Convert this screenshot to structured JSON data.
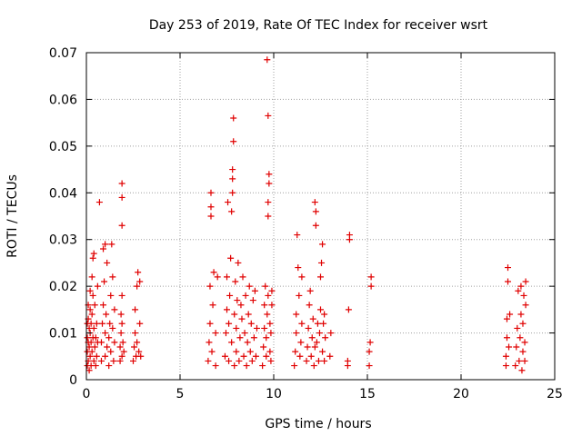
{
  "chart_data": {
    "type": "scatter",
    "title": "Day 253 of 2019, Rate Of TEC Index for receiver wsrt",
    "xlabel": "GPS time / hours",
    "ylabel": "ROTI / TECUs",
    "xlim": [
      0,
      25
    ],
    "ylim": [
      0,
      0.07
    ],
    "x_ticks": [
      0,
      5,
      10,
      15,
      20,
      25
    ],
    "x_tick_labels": [
      "0",
      "5",
      "10",
      "15",
      "20",
      "25"
    ],
    "y_ticks": [
      0,
      0.01,
      0.02,
      0.03,
      0.04,
      0.05,
      0.06,
      0.07
    ],
    "y_tick_labels": [
      "0",
      "0.01",
      "0.02",
      "0.03",
      "0.04",
      "0.05",
      "0.06",
      "0.07"
    ],
    "grid": true,
    "marker": "plus",
    "color": "#e00000",
    "series": [
      {
        "name": "",
        "points": [
          [
            0.05,
            0.003
          ],
          [
            0.05,
            0.006
          ],
          [
            0.05,
            0.009
          ],
          [
            0.05,
            0.012
          ],
          [
            0.1,
            0.004
          ],
          [
            0.1,
            0.008
          ],
          [
            0.1,
            0.013
          ],
          [
            0.1,
            0.016
          ],
          [
            0.15,
            0.002
          ],
          [
            0.15,
            0.007
          ],
          [
            0.15,
            0.011
          ],
          [
            0.2,
            0.005
          ],
          [
            0.2,
            0.01
          ],
          [
            0.2,
            0.015
          ],
          [
            0.2,
            0.019
          ],
          [
            0.25,
            0.003
          ],
          [
            0.25,
            0.008
          ],
          [
            0.25,
            0.012
          ],
          [
            0.3,
            0.006
          ],
          [
            0.3,
            0.014
          ],
          [
            0.3,
            0.022
          ],
          [
            0.35,
            0.009
          ],
          [
            0.35,
            0.018
          ],
          [
            0.35,
            0.026
          ],
          [
            0.4,
            0.004
          ],
          [
            0.4,
            0.011
          ],
          [
            0.4,
            0.027
          ],
          [
            0.45,
            0.007
          ],
          [
            0.45,
            0.016
          ],
          [
            0.5,
            0.003
          ],
          [
            0.5,
            0.009
          ],
          [
            0.55,
            0.005
          ],
          [
            0.55,
            0.012
          ],
          [
            0.6,
            0.008
          ],
          [
            0.6,
            0.02
          ],
          [
            0.8,
            0.004
          ],
          [
            0.8,
            0.008
          ],
          [
            0.85,
            0.012
          ],
          [
            0.9,
            0.016
          ],
          [
            0.9,
            0.028
          ],
          [
            0.95,
            0.021
          ],
          [
            1.0,
            0.005
          ],
          [
            1.0,
            0.01
          ],
          [
            1.0,
            0.029
          ],
          [
            1.05,
            0.014
          ],
          [
            1.1,
            0.025
          ],
          [
            1.1,
            0.007
          ],
          [
            0.7,
            0.038
          ],
          [
            1.2,
            0.003
          ],
          [
            1.2,
            0.009
          ],
          [
            1.25,
            0.012
          ],
          [
            1.3,
            0.006
          ],
          [
            1.3,
            0.018
          ],
          [
            1.35,
            0.029
          ],
          [
            1.4,
            0.011
          ],
          [
            1.4,
            0.022
          ],
          [
            1.45,
            0.004
          ],
          [
            1.5,
            0.008
          ],
          [
            1.5,
            0.015
          ],
          [
            1.8,
            0.004
          ],
          [
            1.8,
            0.007
          ],
          [
            1.85,
            0.01
          ],
          [
            1.85,
            0.014
          ],
          [
            1.9,
            0.005
          ],
          [
            1.9,
            0.012
          ],
          [
            1.9,
            0.018
          ],
          [
            1.9,
            0.033
          ],
          [
            1.9,
            0.039
          ],
          [
            1.9,
            0.042
          ],
          [
            1.95,
            0.008
          ],
          [
            2.0,
            0.006
          ],
          [
            2.5,
            0.004
          ],
          [
            2.55,
            0.007
          ],
          [
            2.6,
            0.01
          ],
          [
            2.6,
            0.015
          ],
          [
            2.65,
            0.005
          ],
          [
            2.7,
            0.008
          ],
          [
            2.7,
            0.02
          ],
          [
            2.75,
            0.023
          ],
          [
            2.8,
            0.006
          ],
          [
            2.85,
            0.012
          ],
          [
            2.85,
            0.021
          ],
          [
            2.9,
            0.005
          ],
          [
            6.5,
            0.004
          ],
          [
            6.55,
            0.008
          ],
          [
            6.6,
            0.012
          ],
          [
            6.6,
            0.02
          ],
          [
            6.65,
            0.035
          ],
          [
            6.65,
            0.037
          ],
          [
            6.65,
            0.04
          ],
          [
            6.7,
            0.006
          ],
          [
            6.75,
            0.016
          ],
          [
            6.8,
            0.023
          ],
          [
            6.9,
            0.003
          ],
          [
            6.9,
            0.01
          ],
          [
            7.0,
            0.022
          ],
          [
            7.4,
            0.005
          ],
          [
            7.45,
            0.01
          ],
          [
            7.5,
            0.015
          ],
          [
            7.5,
            0.022
          ],
          [
            7.55,
            0.038
          ],
          [
            7.6,
            0.004
          ],
          [
            7.6,
            0.012
          ],
          [
            7.65,
            0.018
          ],
          [
            7.7,
            0.026
          ],
          [
            7.75,
            0.008
          ],
          [
            7.75,
            0.036
          ],
          [
            7.8,
            0.04
          ],
          [
            7.8,
            0.043
          ],
          [
            7.8,
            0.045
          ],
          [
            7.85,
            0.051
          ],
          [
            7.85,
            0.056
          ],
          [
            7.9,
            0.003
          ],
          [
            7.9,
            0.014
          ],
          [
            7.95,
            0.021
          ],
          [
            8.0,
            0.006
          ],
          [
            8.0,
            0.011
          ],
          [
            8.05,
            0.017
          ],
          [
            8.1,
            0.025
          ],
          [
            8.15,
            0.004
          ],
          [
            8.2,
            0.009
          ],
          [
            8.25,
            0.016
          ],
          [
            8.3,
            0.013
          ],
          [
            8.35,
            0.022
          ],
          [
            8.4,
            0.005
          ],
          [
            8.45,
            0.01
          ],
          [
            8.5,
            0.018
          ],
          [
            8.55,
            0.003
          ],
          [
            8.6,
            0.008
          ],
          [
            8.65,
            0.014
          ],
          [
            8.7,
            0.02
          ],
          [
            8.75,
            0.006
          ],
          [
            8.8,
            0.012
          ],
          [
            8.85,
            0.004
          ],
          [
            8.9,
            0.017
          ],
          [
            8.95,
            0.009
          ],
          [
            9.0,
            0.019
          ],
          [
            9.05,
            0.005
          ],
          [
            9.1,
            0.011
          ],
          [
            9.4,
            0.003
          ],
          [
            9.45,
            0.007
          ],
          [
            9.5,
            0.011
          ],
          [
            9.5,
            0.016
          ],
          [
            9.55,
            0.02
          ],
          [
            9.6,
            0.005
          ],
          [
            9.6,
            0.009
          ],
          [
            9.65,
            0.014
          ],
          [
            9.7,
            0.018
          ],
          [
            9.7,
            0.035
          ],
          [
            9.7,
            0.038
          ],
          [
            9.75,
            0.042
          ],
          [
            9.75,
            0.044
          ],
          [
            9.7,
            0.0565
          ],
          [
            9.65,
            0.0685
          ],
          [
            9.8,
            0.006
          ],
          [
            9.8,
            0.012
          ],
          [
            9.85,
            0.004
          ],
          [
            9.85,
            0.01
          ],
          [
            9.9,
            0.016
          ],
          [
            9.9,
            0.019
          ],
          [
            11.1,
            0.003
          ],
          [
            11.15,
            0.006
          ],
          [
            11.2,
            0.01
          ],
          [
            11.2,
            0.014
          ],
          [
            11.25,
            0.031
          ],
          [
            11.3,
            0.024
          ],
          [
            11.35,
            0.018
          ],
          [
            11.4,
            0.005
          ],
          [
            11.45,
            0.008
          ],
          [
            11.5,
            0.012
          ],
          [
            11.5,
            0.022
          ],
          [
            11.75,
            0.004
          ],
          [
            11.8,
            0.007
          ],
          [
            11.85,
            0.011
          ],
          [
            11.9,
            0.016
          ],
          [
            11.95,
            0.019
          ],
          [
            12.0,
            0.005
          ],
          [
            12.05,
            0.009
          ],
          [
            12.1,
            0.013
          ],
          [
            12.15,
            0.003
          ],
          [
            12.2,
            0.007
          ],
          [
            12.2,
            0.038
          ],
          [
            12.25,
            0.036
          ],
          [
            12.25,
            0.033
          ],
          [
            12.3,
            0.008
          ],
          [
            12.35,
            0.012
          ],
          [
            12.4,
            0.004
          ],
          [
            12.45,
            0.01
          ],
          [
            12.5,
            0.015
          ],
          [
            12.5,
            0.022
          ],
          [
            12.55,
            0.025
          ],
          [
            12.6,
            0.029
          ],
          [
            12.6,
            0.006
          ],
          [
            12.65,
            0.012
          ],
          [
            12.7,
            0.014
          ],
          [
            12.7,
            0.004
          ],
          [
            12.75,
            0.009
          ],
          [
            13.0,
            0.005
          ],
          [
            13.05,
            0.01
          ],
          [
            13.95,
            0.003
          ],
          [
            13.95,
            0.004
          ],
          [
            14.0,
            0.015
          ],
          [
            14.05,
            0.03
          ],
          [
            14.05,
            0.031
          ],
          [
            15.1,
            0.003
          ],
          [
            15.1,
            0.006
          ],
          [
            15.15,
            0.008
          ],
          [
            15.2,
            0.02
          ],
          [
            15.2,
            0.022
          ],
          [
            22.4,
            0.003
          ],
          [
            22.4,
            0.005
          ],
          [
            22.45,
            0.009
          ],
          [
            22.45,
            0.013
          ],
          [
            22.5,
            0.021
          ],
          [
            22.5,
            0.024
          ],
          [
            22.55,
            0.007
          ],
          [
            22.6,
            0.014
          ],
          [
            22.9,
            0.003
          ],
          [
            22.95,
            0.007
          ],
          [
            23.0,
            0.011
          ],
          [
            23.05,
            0.019
          ],
          [
            23.1,
            0.004
          ],
          [
            23.15,
            0.009
          ],
          [
            23.2,
            0.014
          ],
          [
            23.2,
            0.02
          ],
          [
            23.25,
            0.002
          ],
          [
            23.3,
            0.006
          ],
          [
            23.3,
            0.012
          ],
          [
            23.35,
            0.018
          ],
          [
            23.4,
            0.004
          ],
          [
            23.4,
            0.008
          ],
          [
            23.45,
            0.016
          ],
          [
            23.45,
            0.021
          ]
        ]
      }
    ]
  }
}
